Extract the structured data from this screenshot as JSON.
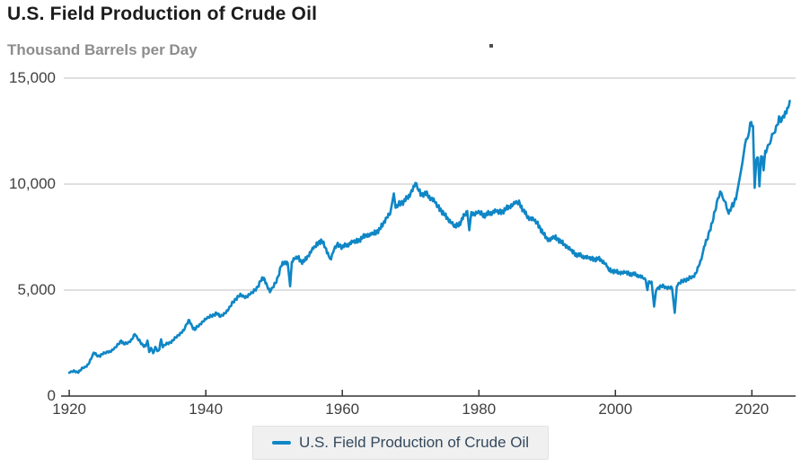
{
  "header": {
    "title": "U.S. Field Production of Crude Oil",
    "subtitle": "Thousand Barrels per Day"
  },
  "legend": {
    "label": "U.S. Field Production of Crude Oil"
  },
  "colors": {
    "line": "#0f86c5",
    "grid": "#cccccc",
    "axis": "#333333",
    "tick_label": "#404040",
    "title": "#1c1c1c",
    "subtitle": "#8d8d8d",
    "legend_text": "#34495e",
    "legend_bg": "#f0f0f0",
    "legend_border": "#e2e2e2",
    "artifact_dot": "#4d4d4d"
  },
  "chart_data": {
    "type": "line",
    "title": "U.S. Field Production of Crude Oil",
    "ylabel": "Thousand Barrels per Day",
    "xlabel": "",
    "frequency": "monthly",
    "grid": "horizontal",
    "legend_position": "bottom",
    "ylim": [
      0,
      15000
    ],
    "y_ticks": [
      0,
      5000,
      10000,
      15000
    ],
    "y_tick_labels": [
      "0",
      "5,000",
      "10,000",
      "15,000"
    ],
    "x_domain": [
      1918.8,
      2026.4
    ],
    "x_ticks": [
      1920,
      1940,
      1960,
      1980,
      2000,
      2020
    ],
    "x_tick_labels": [
      "1920",
      "1940",
      "1960",
      "1980",
      "2000",
      "2020"
    ],
    "monthly_volatility": {
      "base_kbd": 40,
      "per_value_fraction": 0.013
    },
    "series": [
      {
        "name": "U.S. Field Production of Crude Oil",
        "units": "thousand barrels per day",
        "points": [
          [
            1920.0,
            1100
          ],
          [
            1920.4,
            1150
          ],
          [
            1920.8,
            1180
          ],
          [
            1921.2,
            1120
          ],
          [
            1921.6,
            1200
          ],
          [
            1922.0,
            1330
          ],
          [
            1922.4,
            1380
          ],
          [
            1922.8,
            1500
          ],
          [
            1923.2,
            1750
          ],
          [
            1923.6,
            2050
          ],
          [
            1924.0,
            1930
          ],
          [
            1924.4,
            1880
          ],
          [
            1924.8,
            1970
          ],
          [
            1925.2,
            2020
          ],
          [
            1925.6,
            2100
          ],
          [
            1926.0,
            2080
          ],
          [
            1926.4,
            2180
          ],
          [
            1926.8,
            2300
          ],
          [
            1927.2,
            2450
          ],
          [
            1927.6,
            2620
          ],
          [
            1928.0,
            2450
          ],
          [
            1928.4,
            2480
          ],
          [
            1928.8,
            2560
          ],
          [
            1929.2,
            2680
          ],
          [
            1929.6,
            2920
          ],
          [
            1930.0,
            2720
          ],
          [
            1930.4,
            2550
          ],
          [
            1930.8,
            2400
          ],
          [
            1931.2,
            2350
          ],
          [
            1931.45,
            2620
          ],
          [
            1931.7,
            2080
          ],
          [
            1932.0,
            2270
          ],
          [
            1932.3,
            2020
          ],
          [
            1932.6,
            2320
          ],
          [
            1932.9,
            2120
          ],
          [
            1933.2,
            2200
          ],
          [
            1933.45,
            2680
          ],
          [
            1933.7,
            2300
          ],
          [
            1934.0,
            2420
          ],
          [
            1934.4,
            2480
          ],
          [
            1934.8,
            2540
          ],
          [
            1935.2,
            2620
          ],
          [
            1935.6,
            2760
          ],
          [
            1936.0,
            2880
          ],
          [
            1936.4,
            2980
          ],
          [
            1936.8,
            3100
          ],
          [
            1937.2,
            3400
          ],
          [
            1937.6,
            3580
          ],
          [
            1938.0,
            3280
          ],
          [
            1938.4,
            3120
          ],
          [
            1938.8,
            3280
          ],
          [
            1939.2,
            3400
          ],
          [
            1939.6,
            3520
          ],
          [
            1940.0,
            3620
          ],
          [
            1940.4,
            3710
          ],
          [
            1940.8,
            3780
          ],
          [
            1941.2,
            3840
          ],
          [
            1941.6,
            3910
          ],
          [
            1942.0,
            3760
          ],
          [
            1942.4,
            3820
          ],
          [
            1942.8,
            3900
          ],
          [
            1943.2,
            4020
          ],
          [
            1943.6,
            4230
          ],
          [
            1944.0,
            4440
          ],
          [
            1944.4,
            4590
          ],
          [
            1944.8,
            4700
          ],
          [
            1945.2,
            4760
          ],
          [
            1945.6,
            4700
          ],
          [
            1946.0,
            4660
          ],
          [
            1946.4,
            4780
          ],
          [
            1946.8,
            4870
          ],
          [
            1947.2,
            4990
          ],
          [
            1947.6,
            5160
          ],
          [
            1948.0,
            5420
          ],
          [
            1948.5,
            5580
          ],
          [
            1949.0,
            5180
          ],
          [
            1949.4,
            4900
          ],
          [
            1949.8,
            5120
          ],
          [
            1950.2,
            5320
          ],
          [
            1950.6,
            5650
          ],
          [
            1951.0,
            6120
          ],
          [
            1951.5,
            6320
          ],
          [
            1952.0,
            6270
          ],
          [
            1952.35,
            5180
          ],
          [
            1952.6,
            6330
          ],
          [
            1953.0,
            6460
          ],
          [
            1953.5,
            6560
          ],
          [
            1954.0,
            6320
          ],
          [
            1954.5,
            6380
          ],
          [
            1955.0,
            6620
          ],
          [
            1955.5,
            6860
          ],
          [
            1956.0,
            7030
          ],
          [
            1956.5,
            7260
          ],
          [
            1957.0,
            7320
          ],
          [
            1957.5,
            7010
          ],
          [
            1958.0,
            6620
          ],
          [
            1958.35,
            6450
          ],
          [
            1958.8,
            6920
          ],
          [
            1959.2,
            7120
          ],
          [
            1959.6,
            7140
          ],
          [
            1960.0,
            7010
          ],
          [
            1960.5,
            7110
          ],
          [
            1961.0,
            7160
          ],
          [
            1961.5,
            7260
          ],
          [
            1962.0,
            7290
          ],
          [
            1962.5,
            7370
          ],
          [
            1963.0,
            7480
          ],
          [
            1963.5,
            7610
          ],
          [
            1964.0,
            7560
          ],
          [
            1964.5,
            7660
          ],
          [
            1965.0,
            7740
          ],
          [
            1965.5,
            7870
          ],
          [
            1966.0,
            8140
          ],
          [
            1966.5,
            8420
          ],
          [
            1967.0,
            8580
          ],
          [
            1967.55,
            9560
          ],
          [
            1967.8,
            8880
          ],
          [
            1968.2,
            9030
          ],
          [
            1968.6,
            9140
          ],
          [
            1969.0,
            9160
          ],
          [
            1969.5,
            9330
          ],
          [
            1970.0,
            9560
          ],
          [
            1970.85,
            10040
          ],
          [
            1971.2,
            9680
          ],
          [
            1971.6,
            9500
          ],
          [
            1972.0,
            9560
          ],
          [
            1972.5,
            9480
          ],
          [
            1973.0,
            9310
          ],
          [
            1973.5,
            9180
          ],
          [
            1974.0,
            8920
          ],
          [
            1974.5,
            8760
          ],
          [
            1975.0,
            8520
          ],
          [
            1975.5,
            8350
          ],
          [
            1976.0,
            8160
          ],
          [
            1976.4,
            7980
          ],
          [
            1976.9,
            8060
          ],
          [
            1977.4,
            8240
          ],
          [
            1977.9,
            8520
          ],
          [
            1978.3,
            8730
          ],
          [
            1978.6,
            7820
          ],
          [
            1978.9,
            8680
          ],
          [
            1979.3,
            8540
          ],
          [
            1979.7,
            8620
          ],
          [
            1980.1,
            8670
          ],
          [
            1980.5,
            8560
          ],
          [
            1981.0,
            8540
          ],
          [
            1981.5,
            8610
          ],
          [
            1982.0,
            8660
          ],
          [
            1982.5,
            8710
          ],
          [
            1983.0,
            8660
          ],
          [
            1983.5,
            8720
          ],
          [
            1984.0,
            8820
          ],
          [
            1984.5,
            8950
          ],
          [
            1985.0,
            9010
          ],
          [
            1985.6,
            9140
          ],
          [
            1986.0,
            9080
          ],
          [
            1986.5,
            8770
          ],
          [
            1987.0,
            8500
          ],
          [
            1987.5,
            8370
          ],
          [
            1988.0,
            8310
          ],
          [
            1988.5,
            8170
          ],
          [
            1989.0,
            7920
          ],
          [
            1989.5,
            7620
          ],
          [
            1990.0,
            7420
          ],
          [
            1990.5,
            7340
          ],
          [
            1991.0,
            7510
          ],
          [
            1991.5,
            7430
          ],
          [
            1992.0,
            7270
          ],
          [
            1992.5,
            7160
          ],
          [
            1993.0,
            7010
          ],
          [
            1993.5,
            6870
          ],
          [
            1994.0,
            6720
          ],
          [
            1994.5,
            6660
          ],
          [
            1995.0,
            6610
          ],
          [
            1995.5,
            6560
          ],
          [
            1996.0,
            6510
          ],
          [
            1996.5,
            6470
          ],
          [
            1997.0,
            6460
          ],
          [
            1997.5,
            6470
          ],
          [
            1998.0,
            6400
          ],
          [
            1998.5,
            6240
          ],
          [
            1999.0,
            5960
          ],
          [
            1999.5,
            5910
          ],
          [
            2000.0,
            5870
          ],
          [
            2000.5,
            5820
          ],
          [
            2001.0,
            5810
          ],
          [
            2001.5,
            5820
          ],
          [
            2002.0,
            5760
          ],
          [
            2002.5,
            5770
          ],
          [
            2003.0,
            5710
          ],
          [
            2003.5,
            5670
          ],
          [
            2004.0,
            5570
          ],
          [
            2004.45,
            5460
          ],
          [
            2004.7,
            5000
          ],
          [
            2004.95,
            5420
          ],
          [
            2005.3,
            5400
          ],
          [
            2005.67,
            4220
          ],
          [
            2005.95,
            4950
          ],
          [
            2006.3,
            5130
          ],
          [
            2006.7,
            5170
          ],
          [
            2007.1,
            5160
          ],
          [
            2007.5,
            5120
          ],
          [
            2007.9,
            5110
          ],
          [
            2008.3,
            5090
          ],
          [
            2008.7,
            3930
          ],
          [
            2009.0,
            5180
          ],
          [
            2009.4,
            5330
          ],
          [
            2009.8,
            5420
          ],
          [
            2010.2,
            5510
          ],
          [
            2010.6,
            5470
          ],
          [
            2011.0,
            5590
          ],
          [
            2011.4,
            5640
          ],
          [
            2011.8,
            5790
          ],
          [
            2012.2,
            6120
          ],
          [
            2012.6,
            6440
          ],
          [
            2013.0,
            7060
          ],
          [
            2013.4,
            7360
          ],
          [
            2013.8,
            7810
          ],
          [
            2014.2,
            8180
          ],
          [
            2014.6,
            8720
          ],
          [
            2015.0,
            9320
          ],
          [
            2015.35,
            9650
          ],
          [
            2015.7,
            9380
          ],
          [
            2016.0,
            9200
          ],
          [
            2016.3,
            8870
          ],
          [
            2016.6,
            8600
          ],
          [
            2017.0,
            8910
          ],
          [
            2017.4,
            9120
          ],
          [
            2017.8,
            9560
          ],
          [
            2018.2,
            10280
          ],
          [
            2018.6,
            11000
          ],
          [
            2019.0,
            11880
          ],
          [
            2019.3,
            12130
          ],
          [
            2019.6,
            12480
          ],
          [
            2019.9,
            12930
          ],
          [
            2020.15,
            12740
          ],
          [
            2020.4,
            9820
          ],
          [
            2020.65,
            11150
          ],
          [
            2020.9,
            11250
          ],
          [
            2021.1,
            9900
          ],
          [
            2021.35,
            11310
          ],
          [
            2021.55,
            11280
          ],
          [
            2021.7,
            10650
          ],
          [
            2021.95,
            11570
          ],
          [
            2022.2,
            11650
          ],
          [
            2022.5,
            11870
          ],
          [
            2022.8,
            12080
          ],
          [
            2023.1,
            12380
          ],
          [
            2023.4,
            12450
          ],
          [
            2023.7,
            12800
          ],
          [
            2024.1,
            13150
          ],
          [
            2024.35,
            12980
          ],
          [
            2024.6,
            13230
          ],
          [
            2024.85,
            13420
          ],
          [
            2025.05,
            13330
          ],
          [
            2025.3,
            13600
          ],
          [
            2025.55,
            13930
          ]
        ]
      }
    ]
  }
}
